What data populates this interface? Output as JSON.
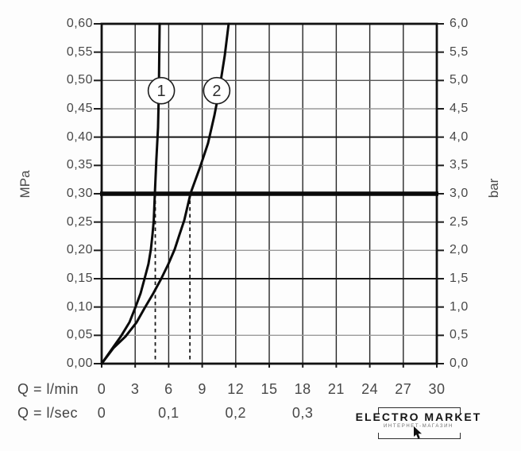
{
  "axes": {
    "left_unit": "MPa",
    "right_unit": "bar",
    "lmin_prefix": "Q = l/min",
    "lsec_prefix": "Q = l/sec",
    "mpa_ticks": [
      "0,60",
      "0,55",
      "0,50",
      "0,45",
      "0,40",
      "0,35",
      "0,30",
      "0,25",
      "0,20",
      "0,15",
      "0,10",
      "0,05",
      "0,00"
    ],
    "bar_ticks": [
      "6,0",
      "5,5",
      "5,0",
      "4,5",
      "4,0",
      "3,5",
      "3,0",
      "2,5",
      "2,0",
      "1,5",
      "1,0",
      "0,5",
      "0,0"
    ],
    "lmin_ticks": [
      "0",
      "3",
      "6",
      "9",
      "12",
      "15",
      "18",
      "21",
      "24",
      "27",
      "30"
    ],
    "lsec_ticks": [
      {
        "label": "0",
        "q": 0
      },
      {
        "label": "0,1",
        "q": 6
      },
      {
        "label": "0,2",
        "q": 12
      },
      {
        "label": "0,3",
        "q": 18
      }
    ]
  },
  "chart_data": {
    "type": "line",
    "title": "",
    "xlabel": "Q (flow rate, l/min and l/sec)",
    "ylabel_left": "MPa",
    "ylabel_right": "bar",
    "xlim": [
      0,
      30
    ],
    "ylim_mpa": [
      0,
      0.6
    ],
    "ylim_bar": [
      0,
      6
    ],
    "x_gridline_step_lmin": 3,
    "y_gridline_step_mpa": 0.05,
    "grid": true,
    "bold_reference_line_mpa": 0.3,
    "series": [
      {
        "name": "1",
        "marker_at": {
          "q": 5.34,
          "mpa": 0.482
        },
        "points": [
          [
            0,
            0
          ],
          [
            0.85,
            0.024
          ],
          [
            1.71,
            0.048
          ],
          [
            2.49,
            0.073
          ],
          [
            2.99,
            0.098
          ],
          [
            3.48,
            0.124
          ],
          [
            3.84,
            0.15
          ],
          [
            4.19,
            0.176
          ],
          [
            4.41,
            0.202
          ],
          [
            4.55,
            0.228
          ],
          [
            4.66,
            0.253
          ],
          [
            4.76,
            0.301
          ],
          [
            4.9,
            0.361
          ],
          [
            5.05,
            0.417
          ],
          [
            5.12,
            0.481
          ],
          [
            5.19,
            0.6
          ]
        ]
      },
      {
        "name": "2",
        "marker_at": {
          "q": 10.3,
          "mpa": 0.482
        },
        "points": [
          [
            0,
            0
          ],
          [
            1.07,
            0.028
          ],
          [
            2.13,
            0.048
          ],
          [
            3.13,
            0.073
          ],
          [
            3.84,
            0.098
          ],
          [
            4.62,
            0.124
          ],
          [
            5.33,
            0.15
          ],
          [
            5.97,
            0.176
          ],
          [
            6.54,
            0.202
          ],
          [
            6.97,
            0.228
          ],
          [
            7.39,
            0.253
          ],
          [
            7.96,
            0.301
          ],
          [
            8.81,
            0.347
          ],
          [
            9.52,
            0.389
          ],
          [
            10.09,
            0.438
          ],
          [
            10.52,
            0.482
          ],
          [
            11.02,
            0.544
          ],
          [
            11.37,
            0.6
          ]
        ]
      }
    ],
    "dashed_guides": [
      {
        "x_lmin": 4.8,
        "from_mpa": 0.0,
        "to_mpa": 0.3
      },
      {
        "x_lmin": 7.9,
        "from_mpa": 0.0,
        "to_mpa": 0.3
      }
    ]
  },
  "watermark": {
    "line1": "ELECTRO MARKET",
    "line2": "ИНТЕРНЕТ-МАГАЗИН",
    "cursor_icon": "mouse-pointer"
  }
}
